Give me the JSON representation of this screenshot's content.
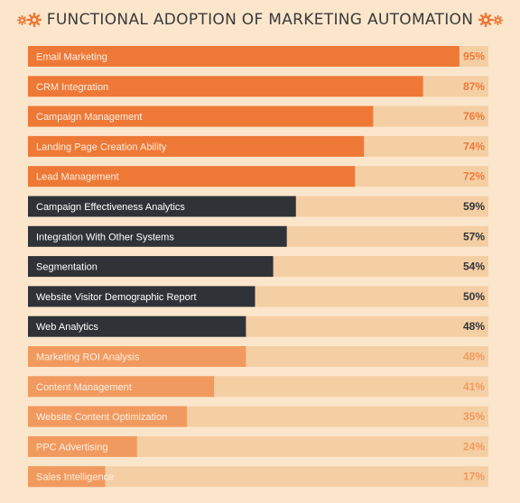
{
  "title": "FUNCTIONAL ADOPTION OF MARKETING AUTOMATION",
  "colors": {
    "background": "#fbe6cc",
    "track": "#f5cfa4",
    "tier1": "#ee7937",
    "tier2": "#2f3337",
    "tier3": "#f19a5f",
    "tier1_pct": "#ee7937",
    "tier2_pct": "#2f3337",
    "tier3_pct": "#f19a5f"
  },
  "chart_data": {
    "type": "bar",
    "orientation": "horizontal",
    "title": "FUNCTIONAL ADOPTION OF MARKETING AUTOMATION",
    "xlim": [
      0,
      100
    ],
    "grid": false,
    "categories": [
      "Email Marketing",
      "CRM Integration",
      "Campaign Management",
      "Landing Page Creation Ability",
      "Lead Management",
      "Campaign Effectiveness Analytics",
      "Integration With Other Systems",
      "Segmentation",
      "Website Visitor Demographic Report",
      "Web Analytics",
      "Marketing ROI Analysis",
      "Content Management",
      "Website Content Optimization",
      "PPC Advertising",
      "Sales Intelligence"
    ],
    "values": [
      95,
      87,
      76,
      74,
      72,
      59,
      57,
      54,
      50,
      48,
      48,
      41,
      35,
      24,
      17
    ],
    "value_labels": [
      "95%",
      "87%",
      "76%",
      "74%",
      "72%",
      "59%",
      "57%",
      "54%",
      "50%",
      "48%",
      "48%",
      "41%",
      "35%",
      "24%",
      "17%"
    ],
    "tiers": [
      1,
      1,
      1,
      1,
      1,
      2,
      2,
      2,
      2,
      2,
      3,
      3,
      3,
      3,
      3
    ]
  }
}
